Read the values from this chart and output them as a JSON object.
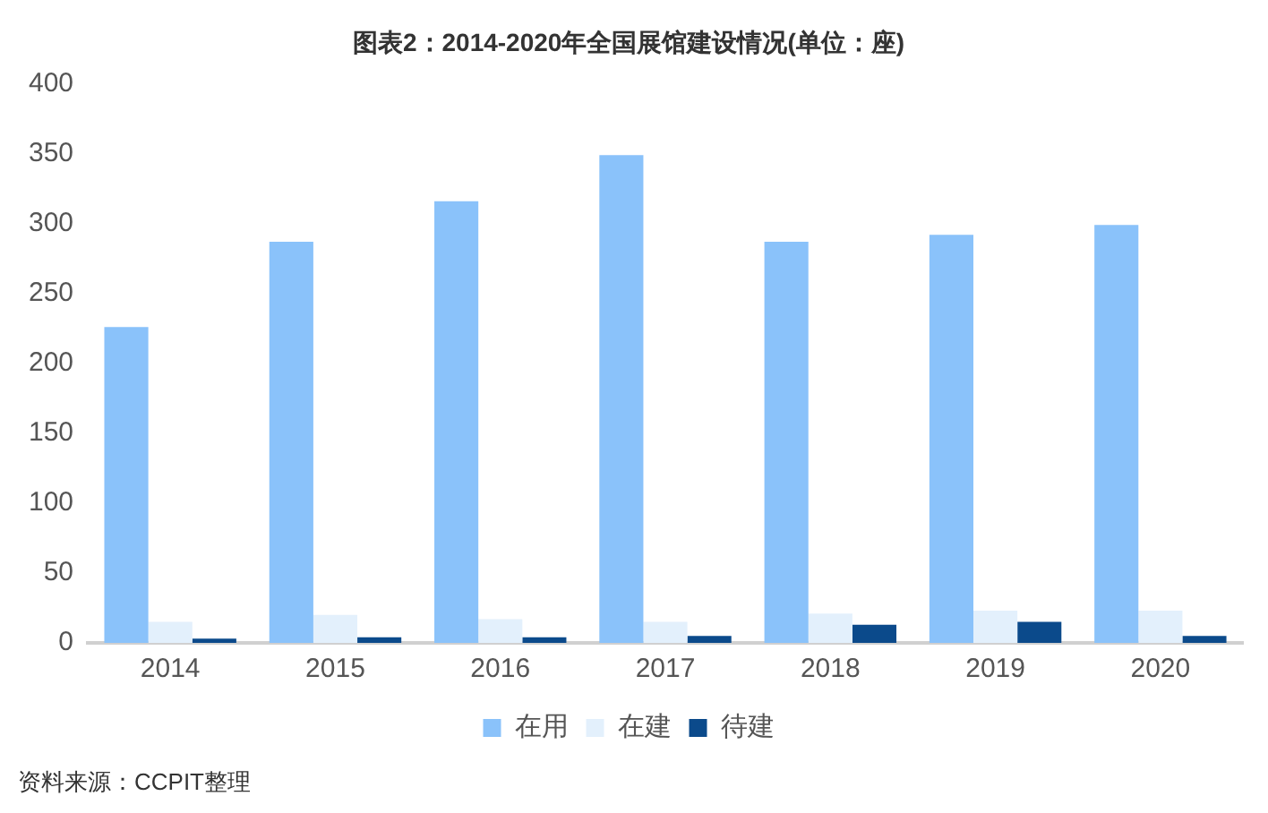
{
  "chart_data": {
    "type": "bar",
    "title": "图表2：2014-2020年全国展馆建设情况(单位：座)",
    "categories": [
      "2014",
      "2015",
      "2016",
      "2017",
      "2018",
      "2019",
      "2020"
    ],
    "series": [
      {
        "name": "在用",
        "color": "#8ac2fa",
        "values": [
          226,
          287,
          316,
          349,
          287,
          292,
          299
        ]
      },
      {
        "name": "在建",
        "color": "#e3f0fc",
        "values": [
          15,
          20,
          17,
          15,
          21,
          23,
          23
        ]
      },
      {
        "name": "待建",
        "color": "#0b4a8b",
        "values": [
          3,
          4,
          4,
          5,
          13,
          15,
          5
        ]
      }
    ],
    "ylim": [
      0,
      400
    ],
    "yticks": [
      0,
      50,
      100,
      150,
      200,
      250,
      300,
      350,
      400
    ],
    "grid": false,
    "legend": "bottom",
    "annotations": [
      "资料来源：CCPIT整理"
    ]
  }
}
